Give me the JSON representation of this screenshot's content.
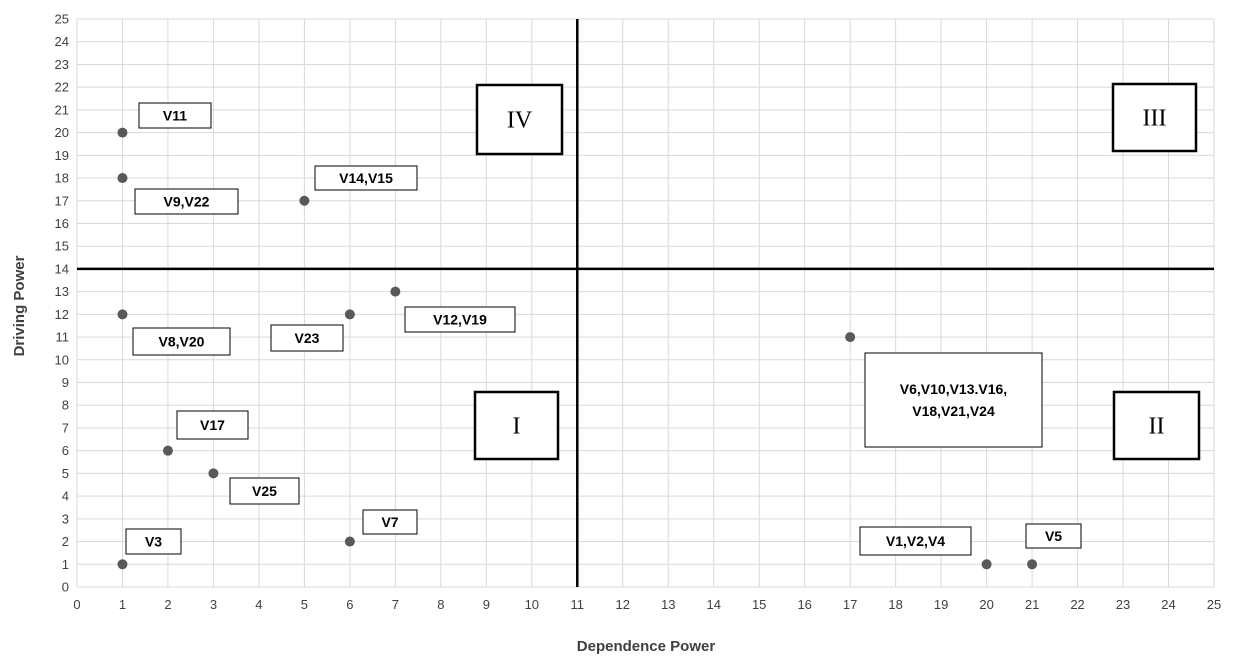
{
  "chart_data": {
    "type": "scatter",
    "xlabel": "Dependence Power",
    "ylabel": "Driving Power",
    "xlim": [
      0,
      25
    ],
    "ylim": [
      0,
      25
    ],
    "x_ticks": [
      0,
      1,
      2,
      3,
      4,
      5,
      6,
      7,
      8,
      9,
      10,
      11,
      12,
      13,
      14,
      15,
      16,
      17,
      18,
      19,
      20,
      21,
      22,
      23,
      24,
      25
    ],
    "y_ticks": [
      0,
      1,
      2,
      3,
      4,
      5,
      6,
      7,
      8,
      9,
      10,
      11,
      12,
      13,
      14,
      15,
      16,
      17,
      18,
      19,
      20,
      21,
      22,
      23,
      24,
      25
    ],
    "grid": true,
    "divider_x": 11,
    "divider_y": 14,
    "point_color": "#595959",
    "points": [
      {
        "x": 1,
        "y": 20,
        "label": "V11"
      },
      {
        "x": 1,
        "y": 18,
        "label": "V9,V22"
      },
      {
        "x": 5,
        "y": 17,
        "label": "V14,V15"
      },
      {
        "x": 7,
        "y": 13,
        "label": "V12,V19"
      },
      {
        "x": 1,
        "y": 12,
        "label": "V8,V20"
      },
      {
        "x": 6,
        "y": 12,
        "label": "V23"
      },
      {
        "x": 17,
        "y": 11,
        "label": "V6,V10,V13.V16,\nV18,V21,V24"
      },
      {
        "x": 2,
        "y": 6,
        "label": "V17"
      },
      {
        "x": 3,
        "y": 5,
        "label": "V25"
      },
      {
        "x": 6,
        "y": 2,
        "label": "V7"
      },
      {
        "x": 1,
        "y": 1,
        "label": "V3"
      },
      {
        "x": 20,
        "y": 1,
        "label": "V1,V2,V4"
      },
      {
        "x": 21,
        "y": 1,
        "label": "V5"
      }
    ],
    "quadrants": [
      {
        "label": "IV"
      },
      {
        "label": "III"
      },
      {
        "label": "I"
      },
      {
        "label": "II"
      }
    ]
  }
}
